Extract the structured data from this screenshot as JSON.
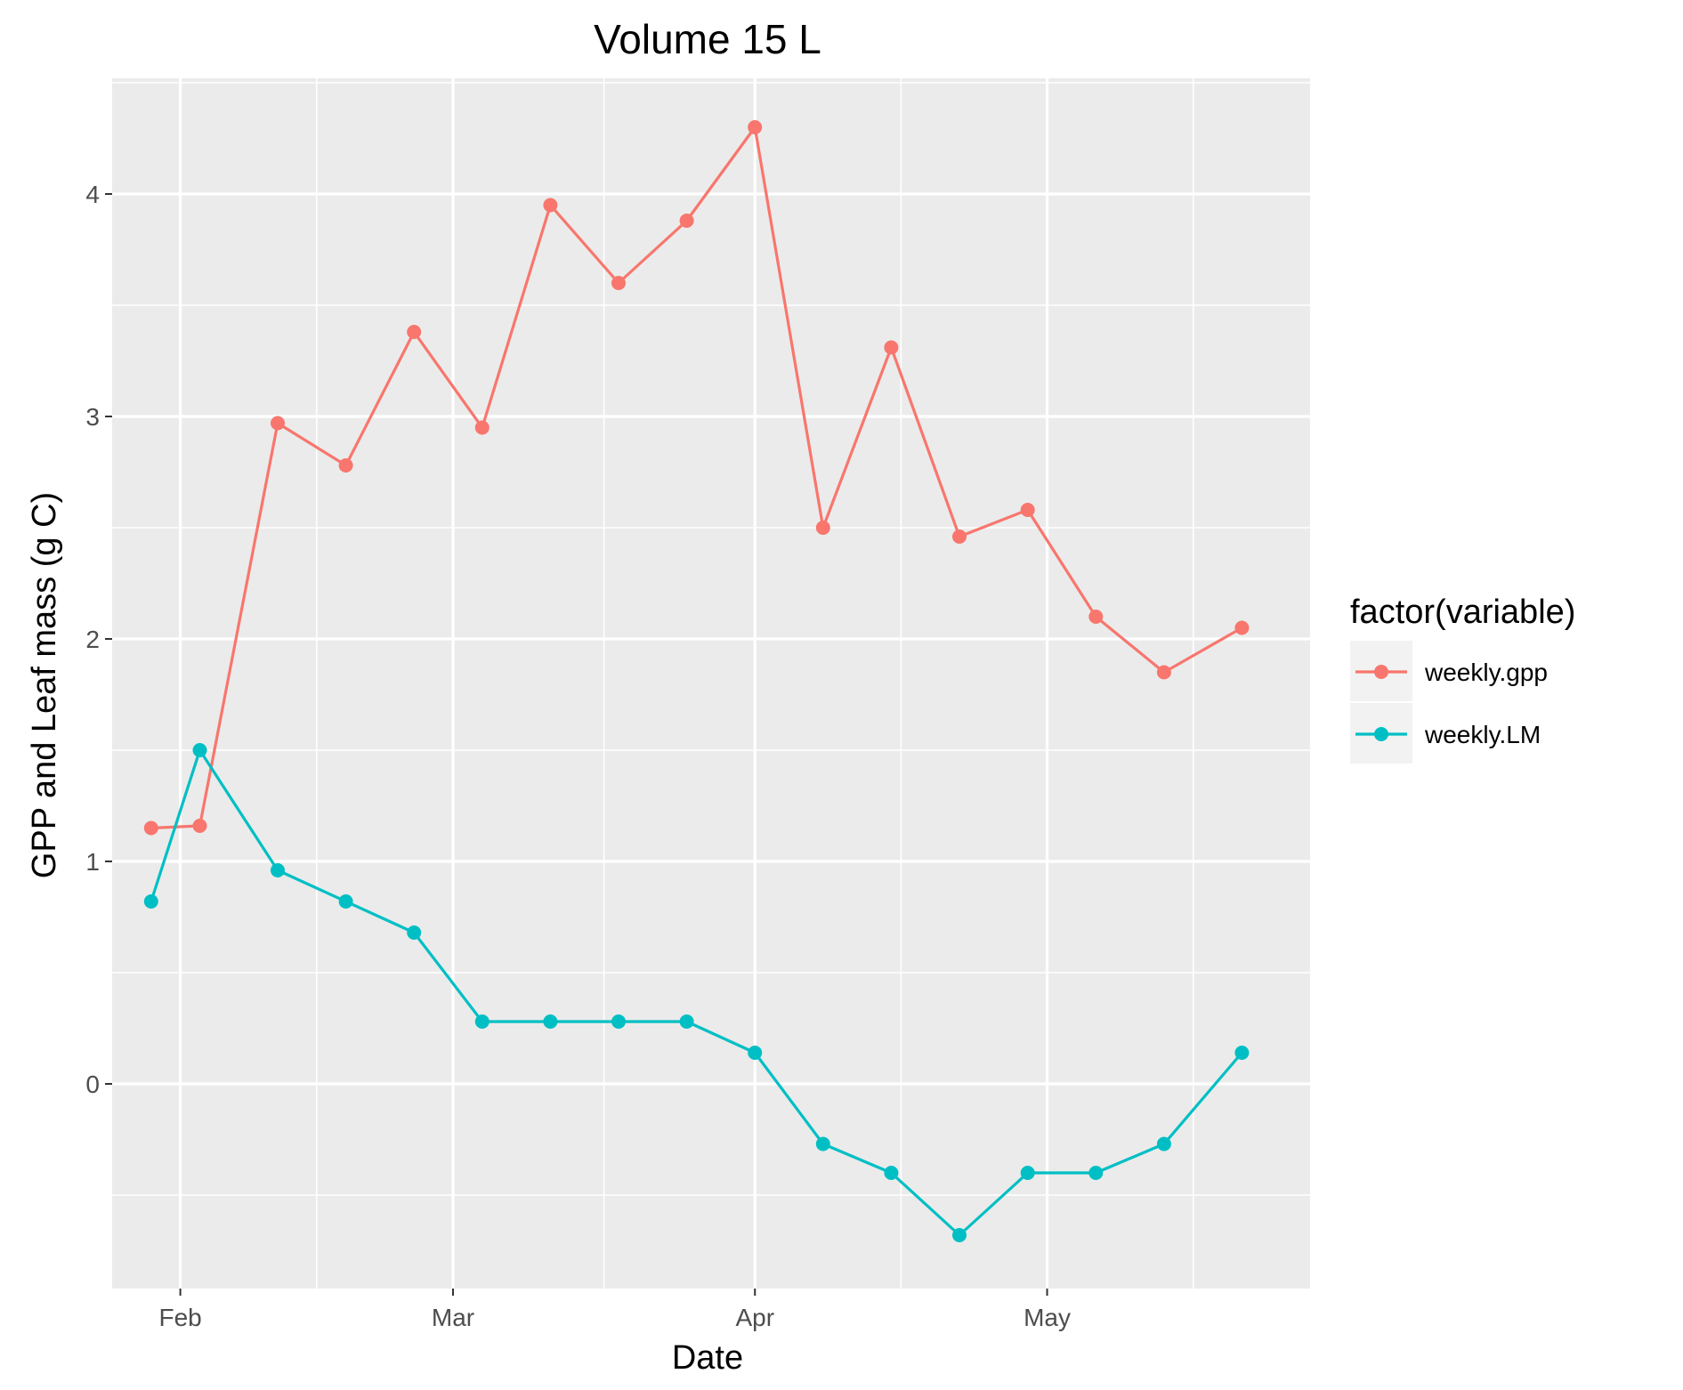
{
  "chart_data": {
    "type": "line",
    "title": "Volume 15 L",
    "xlabel": "Date",
    "ylabel": "GPP and Leaf mass (g C)",
    "x_range": [
      "2013-01-25",
      "2013-05-28"
    ],
    "ylim": [
      -0.92,
      4.52
    ],
    "x_ticks": [
      {
        "date": "2013-02-01",
        "label": "Feb"
      },
      {
        "date": "2013-03-01",
        "label": "Mar"
      },
      {
        "date": "2013-04-01",
        "label": "Apr"
      },
      {
        "date": "2013-05-01",
        "label": "May"
      }
    ],
    "y_ticks": [
      0,
      1,
      2,
      3,
      4
    ],
    "grid": true,
    "legend": {
      "title": "factor(variable)",
      "position": "right"
    },
    "x": [
      "2013-01-29",
      "2013-02-03",
      "2013-02-11",
      "2013-02-18",
      "2013-02-25",
      "2013-03-04",
      "2013-03-11",
      "2013-03-18",
      "2013-03-25",
      "2013-04-01",
      "2013-04-08",
      "2013-04-15",
      "2013-04-22",
      "2013-04-29",
      "2013-05-06",
      "2013-05-13",
      "2013-05-21"
    ],
    "series": [
      {
        "name": "weekly.gpp",
        "color": "#F8766D",
        "values": [
          1.15,
          1.16,
          2.97,
          2.78,
          3.38,
          2.95,
          3.95,
          3.6,
          3.88,
          4.3,
          2.5,
          3.31,
          2.46,
          2.58,
          2.1,
          1.85,
          2.05
        ]
      },
      {
        "name": "weekly.LM",
        "color": "#00BFC4",
        "values": [
          0.82,
          1.5,
          0.96,
          0.82,
          0.68,
          0.28,
          0.28,
          0.28,
          0.28,
          0.14,
          -0.27,
          -0.4,
          -0.68,
          -0.4,
          -0.4,
          -0.27,
          0.14
        ]
      }
    ]
  }
}
